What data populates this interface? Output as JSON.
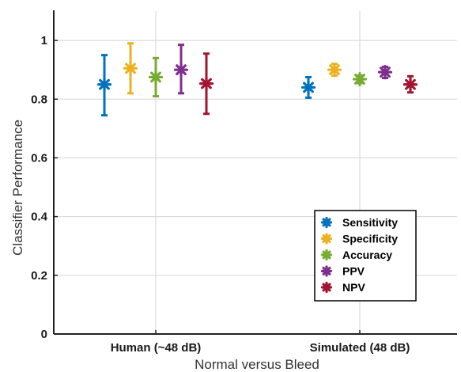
{
  "chart_data": {
    "type": "scatter",
    "xlabel": "Normal versus Bleed",
    "ylabel": "Classifier Performance",
    "ylim": [
      0,
      1.1
    ],
    "yticks": [
      "0",
      "0.2",
      "0.4",
      "0.6",
      "0.8",
      "1"
    ],
    "categories": [
      "Human (~48 dB)",
      "Simulated (48 dB)"
    ],
    "grid": true,
    "legend_position": "bottom-right",
    "series": [
      {
        "name": "Sensitivity",
        "color": "#0072BD",
        "values": [
          0.85,
          0.84
        ],
        "lower": [
          0.745,
          0.805
        ],
        "upper": [
          0.95,
          0.875
        ]
      },
      {
        "name": "Specificity",
        "color": "#EDB120",
        "values": [
          0.905,
          0.9
        ],
        "lower": [
          0.82,
          0.88
        ],
        "upper": [
          0.99,
          0.92
        ]
      },
      {
        "name": "Accuracy",
        "color": "#77AC30",
        "values": [
          0.875,
          0.868
        ],
        "lower": [
          0.81,
          0.855
        ],
        "upper": [
          0.94,
          0.88
        ]
      },
      {
        "name": "PPV",
        "color": "#7E2F8E",
        "values": [
          0.9,
          0.892
        ],
        "lower": [
          0.82,
          0.872
        ],
        "upper": [
          0.985,
          0.91
        ]
      },
      {
        "name": "NPV",
        "color": "#A2142F",
        "values": [
          0.853,
          0.85
        ],
        "lower": [
          0.75,
          0.823
        ],
        "upper": [
          0.955,
          0.878
        ]
      }
    ]
  }
}
